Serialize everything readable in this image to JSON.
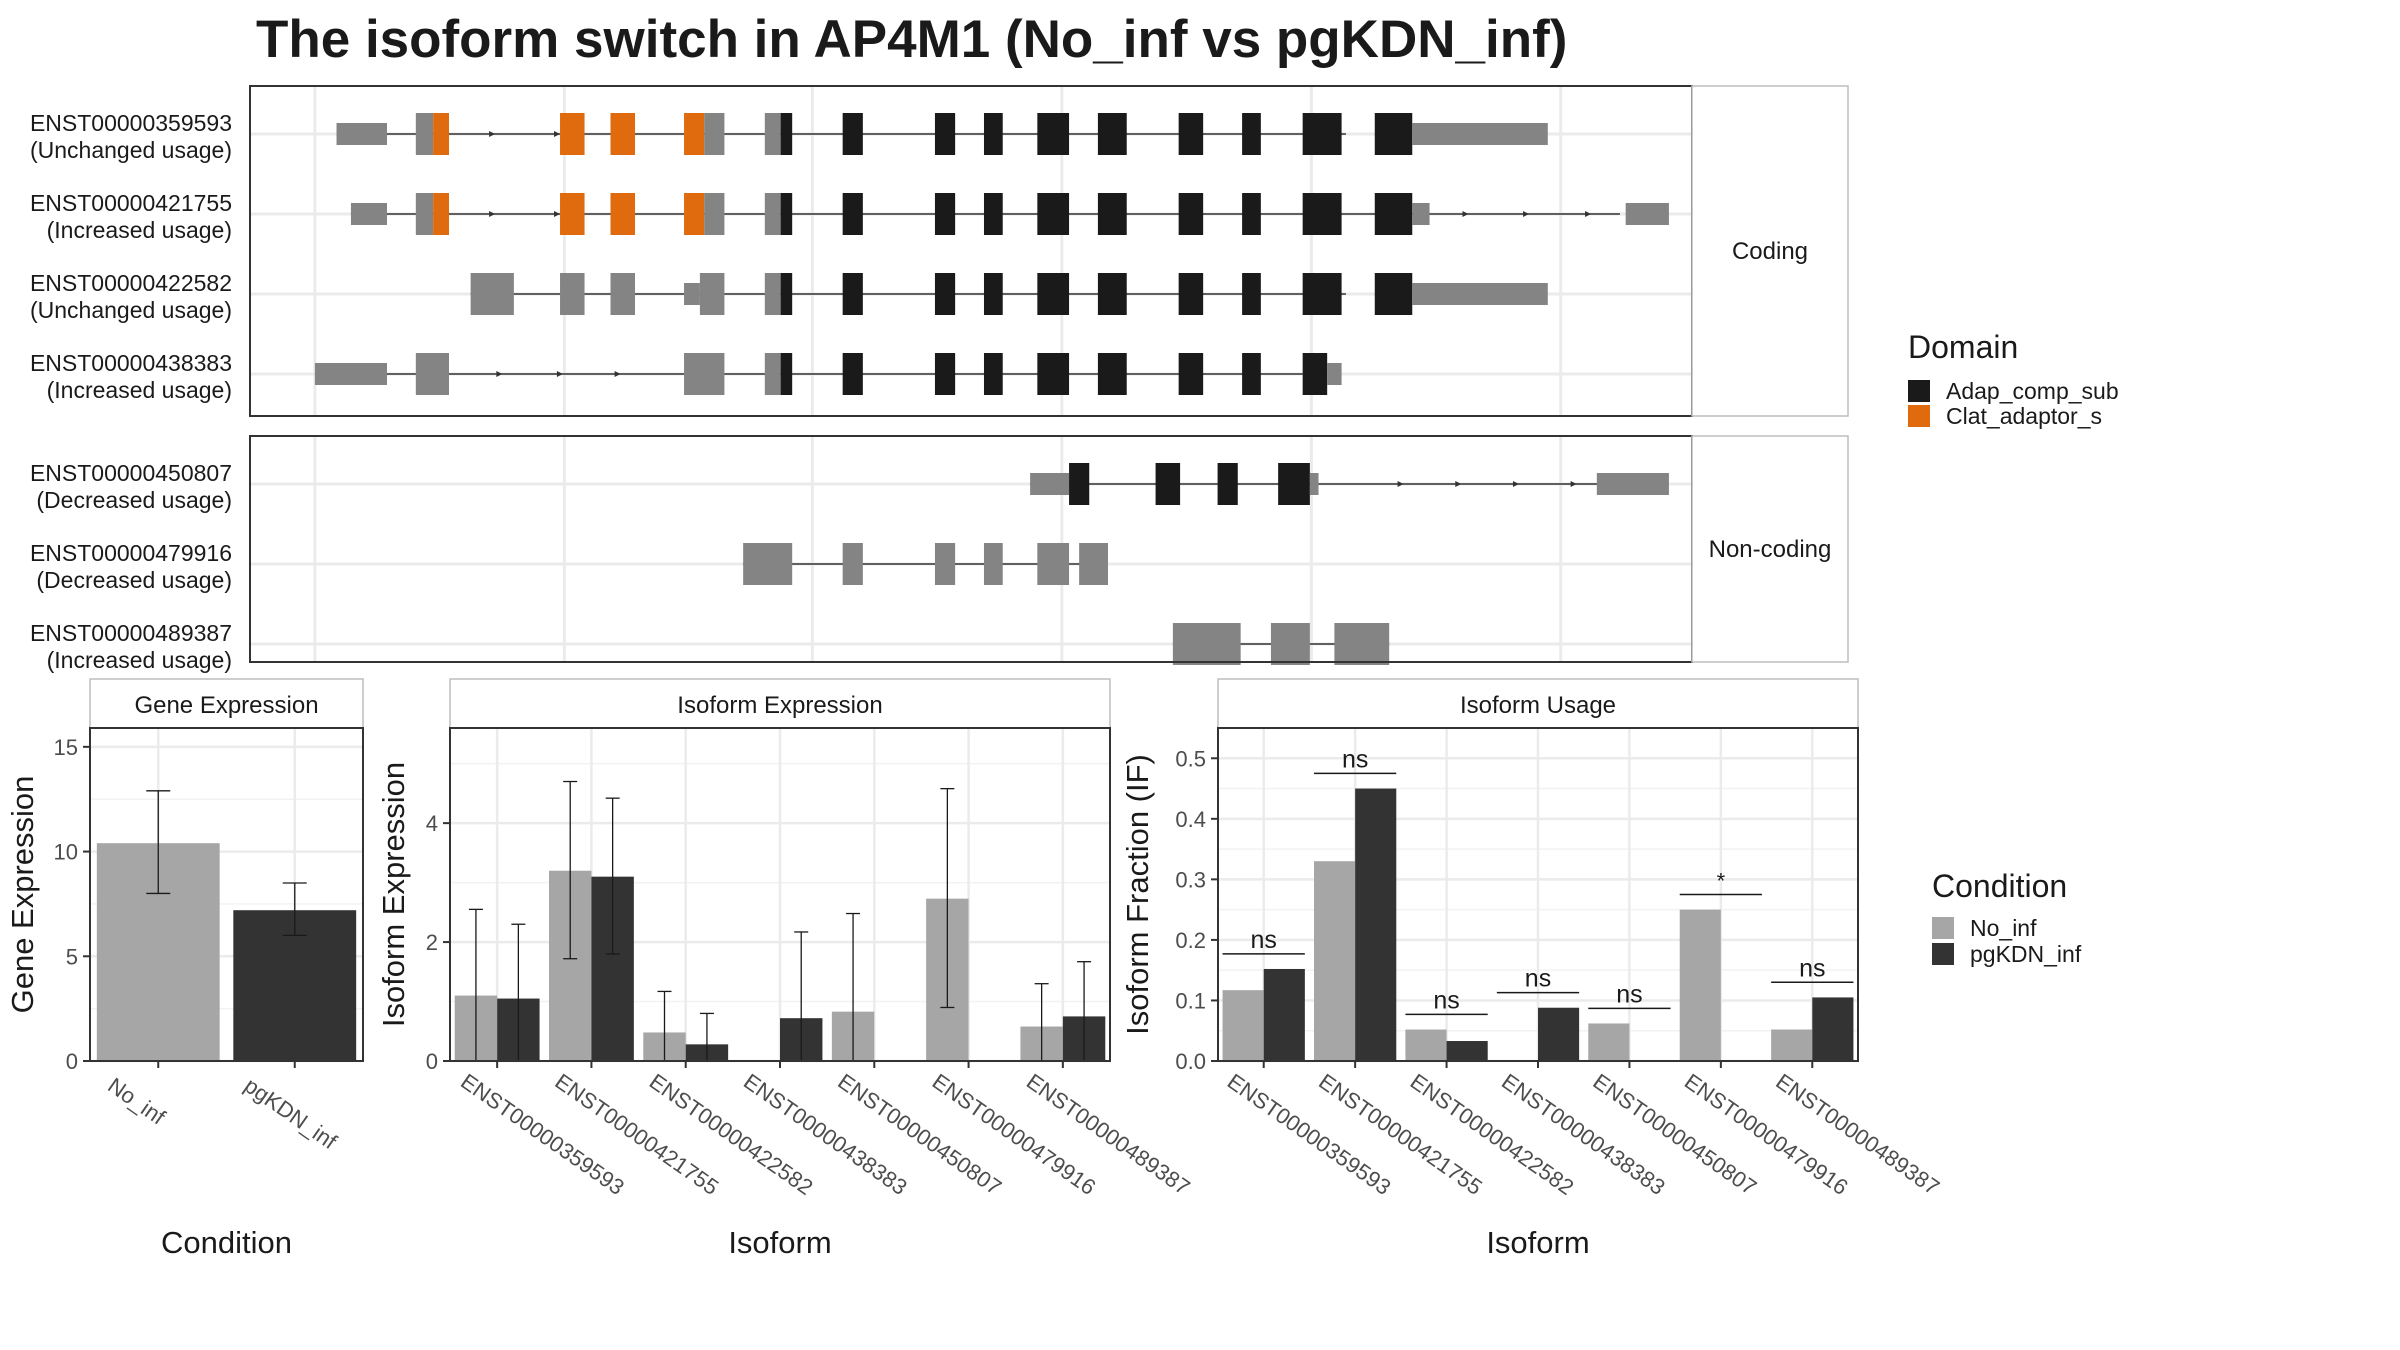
{
  "chart_data": [
    {
      "type": "gene-structure",
      "title": "The isoform switch in AP4M1 (No_inf vs pgKDN_inf)",
      "legend": {
        "title": "Domain",
        "entries": [
          {
            "name": "Adap_comp_sub",
            "color": "#1a1a1a"
          },
          {
            "name": "Clat_adaptor_s",
            "color": "#e06a0e"
          }
        ]
      },
      "facets": [
        {
          "label": "Coding",
          "rows": [
            {
              "id": "ENST00000359593",
              "usage": "(Unchanged usage)",
              "line": [
                0.06,
                0.76
              ],
              "arrows": [
                0.17,
                0.215
              ],
              "exons": [
                [
                  0.06,
                  0.095,
                  "u"
                ],
                [
                  0.115,
                  0.127,
                  "c"
                ],
                [
                  0.127,
                  0.138,
                  "o"
                ],
                [
                  0.215,
                  0.232,
                  "o"
                ],
                [
                  0.25,
                  0.267,
                  "o"
                ],
                [
                  0.301,
                  0.315,
                  "o"
                ],
                [
                  0.315,
                  0.329,
                  "c"
                ],
                [
                  0.357,
                  0.368,
                  "c"
                ],
                [
                  0.368,
                  0.376,
                  "d"
                ],
                [
                  0.411,
                  0.425,
                  "d"
                ],
                [
                  0.475,
                  0.489,
                  "d"
                ],
                [
                  0.509,
                  0.522,
                  "d"
                ],
                [
                  0.546,
                  0.568,
                  "d"
                ],
                [
                  0.588,
                  0.608,
                  "d"
                ],
                [
                  0.644,
                  0.661,
                  "d"
                ],
                [
                  0.688,
                  0.701,
                  "d"
                ],
                [
                  0.73,
                  0.757,
                  "d"
                ],
                [
                  0.78,
                  0.806,
                  "d"
                ],
                [
                  0.806,
                  0.9,
                  "u"
                ]
              ]
            },
            {
              "id": "ENST00000421755",
              "usage": "(Increased usage)",
              "line": [
                0.07,
                0.95
              ],
              "arrows": [
                0.17,
                0.215,
                0.845,
                0.887,
                0.93
              ],
              "exons": [
                [
                  0.07,
                  0.095,
                  "u"
                ],
                [
                  0.115,
                  0.127,
                  "c"
                ],
                [
                  0.127,
                  0.138,
                  "o"
                ],
                [
                  0.215,
                  0.232,
                  "o"
                ],
                [
                  0.25,
                  0.267,
                  "o"
                ],
                [
                  0.301,
                  0.315,
                  "o"
                ],
                [
                  0.315,
                  0.329,
                  "c"
                ],
                [
                  0.357,
                  0.368,
                  "c"
                ],
                [
                  0.368,
                  0.376,
                  "d"
                ],
                [
                  0.411,
                  0.425,
                  "d"
                ],
                [
                  0.475,
                  0.489,
                  "d"
                ],
                [
                  0.509,
                  0.522,
                  "d"
                ],
                [
                  0.546,
                  0.568,
                  "d"
                ],
                [
                  0.588,
                  0.608,
                  "d"
                ],
                [
                  0.644,
                  0.661,
                  "d"
                ],
                [
                  0.688,
                  0.701,
                  "d"
                ],
                [
                  0.73,
                  0.757,
                  "d"
                ],
                [
                  0.78,
                  0.806,
                  "d"
                ],
                [
                  0.806,
                  0.818,
                  "u"
                ],
                [
                  0.954,
                  0.984,
                  "u"
                ]
              ]
            },
            {
              "id": "ENST00000422582",
              "usage": "(Unchanged usage)",
              "line": [
                0.153,
                0.76
              ],
              "arrows": [],
              "exons": [
                [
                  0.153,
                  0.183,
                  "c"
                ],
                [
                  0.215,
                  0.232,
                  "c"
                ],
                [
                  0.25,
                  0.267,
                  "c"
                ],
                [
                  0.301,
                  0.312,
                  "u"
                ],
                [
                  0.312,
                  0.329,
                  "c"
                ],
                [
                  0.357,
                  0.368,
                  "c"
                ],
                [
                  0.368,
                  0.376,
                  "d"
                ],
                [
                  0.411,
                  0.425,
                  "d"
                ],
                [
                  0.475,
                  0.489,
                  "d"
                ],
                [
                  0.509,
                  0.522,
                  "d"
                ],
                [
                  0.546,
                  0.568,
                  "d"
                ],
                [
                  0.588,
                  0.608,
                  "d"
                ],
                [
                  0.644,
                  0.661,
                  "d"
                ],
                [
                  0.688,
                  0.701,
                  "d"
                ],
                [
                  0.73,
                  0.757,
                  "d"
                ],
                [
                  0.78,
                  0.806,
                  "d"
                ],
                [
                  0.806,
                  0.9,
                  "u"
                ]
              ]
            },
            {
              "id": "ENST00000438383",
              "usage": "(Increased usage)",
              "line": [
                0.045,
                0.73
              ],
              "arrows": [
                0.175,
                0.217,
                0.257
              ],
              "exons": [
                [
                  0.045,
                  0.095,
                  "u"
                ],
                [
                  0.115,
                  0.138,
                  "c"
                ],
                [
                  0.301,
                  0.329,
                  "c"
                ],
                [
                  0.357,
                  0.368,
                  "c"
                ],
                [
                  0.368,
                  0.376,
                  "d"
                ],
                [
                  0.411,
                  0.425,
                  "d"
                ],
                [
                  0.475,
                  0.489,
                  "d"
                ],
                [
                  0.509,
                  0.522,
                  "d"
                ],
                [
                  0.546,
                  0.568,
                  "d"
                ],
                [
                  0.588,
                  0.608,
                  "d"
                ],
                [
                  0.644,
                  0.661,
                  "d"
                ],
                [
                  0.688,
                  0.701,
                  "d"
                ],
                [
                  0.73,
                  0.747,
                  "d"
                ],
                [
                  0.747,
                  0.757,
                  "u"
                ]
              ]
            }
          ]
        },
        {
          "label": "Non-coding",
          "rows": [
            {
              "id": "ENST00000450807",
              "usage": "(Decreased usage)",
              "line": [
                0.541,
                0.95
              ],
              "arrows": [
                0.8,
                0.84,
                0.88,
                0.92
              ],
              "exons": [
                [
                  0.541,
                  0.568,
                  "u"
                ],
                [
                  0.568,
                  0.582,
                  "d"
                ],
                [
                  0.628,
                  0.645,
                  "d"
                ],
                [
                  0.671,
                  0.685,
                  "d"
                ],
                [
                  0.713,
                  0.735,
                  "d"
                ],
                [
                  0.735,
                  0.741,
                  "u"
                ],
                [
                  0.934,
                  0.984,
                  "u"
                ]
              ]
            },
            {
              "id": "ENST00000479916",
              "usage": "(Decreased usage)",
              "line": [
                0.342,
                0.595
              ],
              "arrows": [],
              "exons": [
                [
                  0.342,
                  0.376,
                  "c"
                ],
                [
                  0.411,
                  0.425,
                  "c"
                ],
                [
                  0.475,
                  0.489,
                  "c"
                ],
                [
                  0.509,
                  0.522,
                  "c"
                ],
                [
                  0.546,
                  0.568,
                  "c"
                ],
                [
                  0.575,
                  0.595,
                  "c"
                ]
              ]
            },
            {
              "id": "ENST00000489387",
              "usage": "(Increased usage)",
              "line": [
                0.64,
                0.79
              ],
              "arrows": [],
              "exons": [
                [
                  0.64,
                  0.687,
                  "c"
                ],
                [
                  0.708,
                  0.735,
                  "c"
                ],
                [
                  0.752,
                  0.79,
                  "c"
                ]
              ]
            }
          ]
        }
      ]
    },
    {
      "type": "bar",
      "title": "Gene Expression",
      "xlabel": "Condition",
      "ylabel": "Gene Expression",
      "ylim": [
        0,
        15.9
      ],
      "yticks": [
        0,
        5,
        10,
        15
      ],
      "categories": [
        "No_inf",
        "pgKDN_inf"
      ],
      "values": [
        10.4,
        7.2
      ],
      "error_low": [
        8.0,
        6.0
      ],
      "error_high": [
        12.9,
        8.5
      ],
      "colors": [
        "#a6a6a6",
        "#333333"
      ]
    },
    {
      "type": "bar",
      "title": "Isoform Expression",
      "xlabel": "Isoform",
      "ylabel": "Isoform Expression",
      "ylim": [
        0,
        5.6
      ],
      "yticks": [
        0,
        2,
        4
      ],
      "categories": [
        "ENST00000359593",
        "ENST00000421755",
        "ENST00000422582",
        "ENST00000438383",
        "ENST00000450807",
        "ENST00000479916",
        "ENST00000489387"
      ],
      "series": [
        {
          "name": "No_inf",
          "color": "#a6a6a6",
          "values": [
            1.1,
            3.2,
            0.48,
            0.0,
            0.83,
            2.73,
            0.58
          ],
          "error_low": [
            0.0,
            1.72,
            0.0,
            0.0,
            0.0,
            0.9,
            0.0
          ],
          "error_high": [
            2.55,
            4.7,
            1.17,
            0.0,
            2.48,
            4.58,
            1.3
          ]
        },
        {
          "name": "pgKDN_inf",
          "color": "#333333",
          "values": [
            1.05,
            3.1,
            0.28,
            0.72,
            0.0,
            0.0,
            0.75
          ],
          "error_low": [
            0.0,
            1.8,
            0.0,
            0.0,
            0.0,
            0.0,
            0.0
          ],
          "error_high": [
            2.3,
            4.42,
            0.8,
            2.17,
            0.0,
            0.0,
            1.67
          ]
        }
      ]
    },
    {
      "type": "bar",
      "title": "Isoform Usage",
      "xlabel": "Isoform",
      "ylabel": "Isoform Fraction (IF)",
      "ylim": [
        0,
        0.55
      ],
      "yticks": [
        0.0,
        0.1,
        0.2,
        0.3,
        0.4,
        0.5
      ],
      "categories": [
        "ENST00000359593",
        "ENST00000421755",
        "ENST00000422582",
        "ENST00000438383",
        "ENST00000450807",
        "ENST00000479916",
        "ENST00000489387"
      ],
      "series": [
        {
          "name": "No_inf",
          "color": "#a6a6a6",
          "values": [
            0.117,
            0.33,
            0.052,
            0.0,
            0.062,
            0.25,
            0.052
          ]
        },
        {
          "name": "pgKDN_inf",
          "color": "#333333",
          "values": [
            0.152,
            0.45,
            0.033,
            0.088,
            0.0,
            0.0,
            0.105
          ]
        }
      ],
      "annotations": [
        "ns",
        "ns",
        "ns",
        "ns",
        "ns",
        "*",
        "ns"
      ],
      "annotation_y": [
        0.177,
        0.475,
        0.077,
        0.113,
        0.087,
        0.275,
        0.13
      ],
      "legend": {
        "title": "Condition",
        "entries": [
          {
            "name": "No_inf",
            "color": "#a6a6a6"
          },
          {
            "name": "pgKDN_inf",
            "color": "#333333"
          }
        ]
      }
    }
  ]
}
